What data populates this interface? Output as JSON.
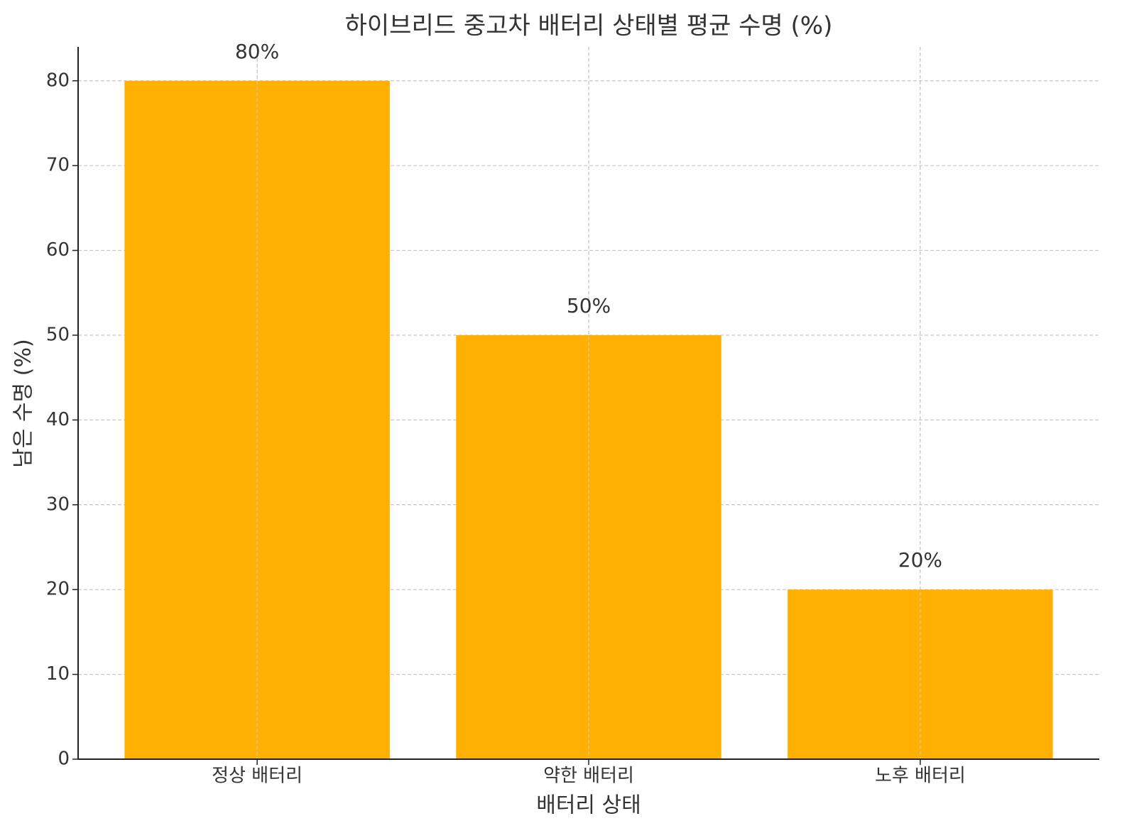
{
  "chart_data": {
    "type": "bar",
    "title": "하이브리드 중고차 배터리 상태별 평균 수명 (%)",
    "x_label": "배터리 상태",
    "y_label": "남은 수명 (%)",
    "categories": [
      "정상 배터리",
      "약한 배터리",
      "노후 배터리"
    ],
    "values": [
      80,
      50,
      20
    ],
    "value_labels": [
      "80%",
      "50%",
      "20%"
    ],
    "color": "#ffb000",
    "ylim": [
      0,
      84
    ],
    "yticks": [
      0,
      10,
      20,
      30,
      40,
      50,
      60,
      70,
      80
    ],
    "grid": true
  }
}
